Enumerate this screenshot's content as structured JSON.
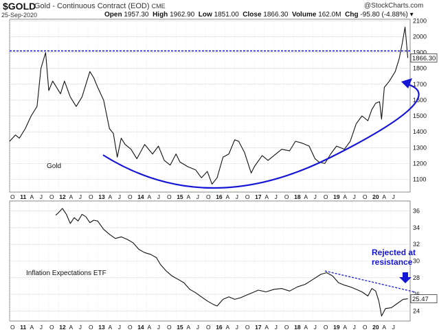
{
  "header": {
    "symbol": "$GOLD",
    "name": "Gold - Continuous Contract (EOD)",
    "exchange": "CME",
    "date": "25-Sep-2020",
    "open_label": "Open",
    "open": "1957.30",
    "high_label": "High",
    "high": "1962.90",
    "low_label": "Low",
    "low": "1851.00",
    "close_label": "Close",
    "close": "1866.30",
    "volume_label": "Volume",
    "volume": "162.0M",
    "chg_label": "Chg",
    "chg": "-95.80 (-4.88%)",
    "brand": "@StockCharts.com"
  },
  "colors": {
    "price_line": "#111111",
    "annotation": "#1515d6",
    "dotted_line": "#1515d6",
    "grid": "#d8d8d8"
  },
  "chart_data": [
    {
      "type": "line",
      "panel": "Gold",
      "title": "Gold",
      "y_ticks": [
        1100,
        1200,
        1300,
        1400,
        1500,
        1600,
        1700,
        1800,
        1900,
        2000,
        2100
      ],
      "ylim": [
        1020,
        2110
      ],
      "xlim": [
        2010.75,
        2020.98
      ],
      "x_tick_labels": [
        "O",
        "11",
        "A",
        "J",
        "O",
        "12",
        "A",
        "J",
        "O",
        "13",
        "A",
        "J",
        "O",
        "14",
        "A",
        "J",
        "O",
        "15",
        "A",
        "J",
        "O",
        "16",
        "A",
        "J",
        "O",
        "17",
        "A",
        "J",
        "O",
        "18",
        "A",
        "J",
        "O",
        "19",
        "A",
        "J",
        "O",
        "20",
        "A",
        "J"
      ],
      "last_value_label": "1866.30",
      "resistance_level": 1910,
      "series": [
        {
          "x": [
            2010.75,
            2010.9,
            2011.0,
            2011.15,
            2011.3,
            2011.45,
            2011.55,
            2011.67,
            2011.75,
            2011.85,
            2011.95,
            2012.05,
            2012.15,
            2012.3,
            2012.45,
            2012.6,
            2012.7,
            2012.8,
            2012.9,
            2013.0,
            2013.15,
            2013.3,
            2013.4,
            2013.5,
            2013.6,
            2013.7,
            2013.85,
            2014.0,
            2014.2,
            2014.4,
            2014.55,
            2014.7,
            2014.85,
            2015.0,
            2015.1,
            2015.3,
            2015.5,
            2015.65,
            2015.8,
            2015.92,
            2016.05,
            2016.2,
            2016.35,
            2016.5,
            2016.6,
            2016.75,
            2016.92,
            2017.0,
            2017.2,
            2017.35,
            2017.5,
            2017.7,
            2017.9,
            2018.05,
            2018.2,
            2018.4,
            2018.55,
            2018.65,
            2018.8,
            2018.95,
            2019.1,
            2019.3,
            2019.45,
            2019.6,
            2019.75,
            2019.9,
            2020.0,
            2020.1,
            2020.2,
            2020.25,
            2020.32,
            2020.45,
            2020.6,
            2020.7,
            2020.78,
            2020.85,
            2020.92
          ],
          "y": [
            1340,
            1380,
            1360,
            1420,
            1500,
            1560,
            1800,
            1900,
            1660,
            1720,
            1680,
            1640,
            1720,
            1620,
            1560,
            1620,
            1700,
            1780,
            1740,
            1680,
            1600,
            1420,
            1390,
            1240,
            1360,
            1320,
            1290,
            1230,
            1320,
            1260,
            1310,
            1220,
            1190,
            1260,
            1210,
            1180,
            1160,
            1110,
            1150,
            1070,
            1110,
            1240,
            1260,
            1350,
            1340,
            1270,
            1140,
            1180,
            1250,
            1220,
            1250,
            1290,
            1280,
            1340,
            1330,
            1310,
            1230,
            1210,
            1200,
            1260,
            1310,
            1290,
            1340,
            1450,
            1500,
            1470,
            1540,
            1580,
            1590,
            1480,
            1680,
            1720,
            1780,
            1860,
            1960,
            2060,
            1866
          ]
        }
      ],
      "annotations": [
        "Gold"
      ]
    },
    {
      "type": "line",
      "panel": "Inflation Expectations ETF",
      "title": "Inflation Expectations ETF",
      "y_ticks": [
        24,
        26,
        28,
        30,
        32,
        34,
        36
      ],
      "ylim": [
        22.8,
        37.2
      ],
      "x_tick_labels": [
        "O",
        "11",
        "A",
        "J",
        "O",
        "12",
        "A",
        "J",
        "O",
        "13",
        "A",
        "J",
        "O",
        "14",
        "A",
        "J",
        "O",
        "15",
        "A",
        "J",
        "O",
        "16",
        "A",
        "J",
        "O",
        "17",
        "A",
        "J",
        "O",
        "18",
        "A",
        "J",
        "O",
        "19",
        "A",
        "J",
        "O",
        "20",
        "A",
        "J"
      ],
      "last_value_label": "25.47",
      "series": [
        {
          "x": [
            2011.93,
            2012.0,
            2012.1,
            2012.2,
            2012.3,
            2012.4,
            2012.5,
            2012.6,
            2012.7,
            2012.8,
            2012.9,
            2013.0,
            2013.15,
            2013.3,
            2013.45,
            2013.6,
            2013.75,
            2013.9,
            2014.05,
            2014.2,
            2014.35,
            2014.5,
            2014.6,
            2014.75,
            2014.9,
            2015.05,
            2015.2,
            2015.35,
            2015.5,
            2015.65,
            2015.8,
            2015.95,
            2016.05,
            2016.2,
            2016.35,
            2016.5,
            2016.65,
            2016.8,
            2016.95,
            2017.1,
            2017.3,
            2017.5,
            2017.7,
            2017.9,
            2018.1,
            2018.3,
            2018.5,
            2018.7,
            2018.85,
            2019.0,
            2019.15,
            2019.3,
            2019.45,
            2019.6,
            2019.75,
            2019.9,
            2020.0,
            2020.1,
            2020.18,
            2020.25,
            2020.35,
            2020.5,
            2020.65,
            2020.8,
            2020.92
          ],
          "y": [
            35.5,
            35.8,
            36.3,
            35.6,
            34.5,
            35.2,
            34.8,
            35.6,
            35.3,
            34.6,
            34.9,
            34.8,
            33.8,
            33.2,
            32.7,
            32.9,
            32.6,
            32.2,
            31.4,
            31.0,
            30.8,
            30.4,
            29.6,
            28.8,
            28.2,
            27.8,
            27.4,
            26.6,
            26.2,
            25.7,
            25.2,
            24.8,
            24.6,
            25.4,
            25.7,
            25.4,
            25.6,
            25.9,
            26.2,
            26.5,
            26.3,
            26.6,
            26.7,
            26.4,
            26.9,
            27.2,
            27.8,
            28.4,
            28.6,
            28.2,
            27.4,
            27.1,
            26.9,
            26.6,
            26.3,
            25.8,
            26.7,
            26.4,
            25.2,
            23.4,
            24.3,
            24.4,
            24.9,
            25.4,
            25.47
          ]
        }
      ],
      "annotations": [
        "Rejected at",
        "resistance"
      ]
    }
  ]
}
